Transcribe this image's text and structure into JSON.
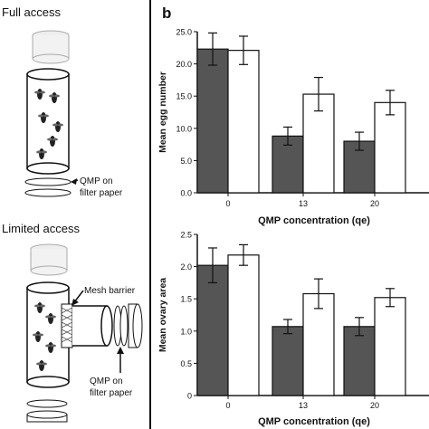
{
  "panel_a": {
    "full_access_title": "Full access",
    "limited_access_title": "Limited access",
    "qmp_label_line1": "QMP on",
    "qmp_label_line2": "filter paper",
    "mesh_label": "Mesh barrier"
  },
  "panel_b": {
    "label": "b"
  },
  "colors": {
    "dark_bar": "#555555",
    "light_bar": "#ffffff",
    "axis": "#111111"
  },
  "chart_data": [
    {
      "type": "bar",
      "categories": [
        "0",
        "13",
        "20"
      ],
      "series": [
        {
          "values": [
            22.3,
            8.8,
            8.0
          ],
          "errors": [
            2.5,
            1.4,
            1.4
          ],
          "color": "#555555"
        },
        {
          "values": [
            22.1,
            15.3,
            14.0
          ],
          "errors": [
            2.2,
            2.6,
            1.9
          ],
          "color": "#ffffff"
        }
      ],
      "xlabel": "QMP concentration (qe)",
      "ylabel": "Mean egg number",
      "ylim": [
        0,
        25
      ],
      "yticks": [
        "0.0",
        "5.0",
        "10.0",
        "15.0",
        "20.0",
        "25.0"
      ],
      "ytick_values": [
        0,
        5,
        10,
        15,
        20,
        25
      ]
    },
    {
      "type": "bar",
      "categories": [
        "0",
        "13",
        "20"
      ],
      "series": [
        {
          "values": [
            2.02,
            1.07,
            1.07
          ],
          "errors": [
            0.27,
            0.11,
            0.14
          ],
          "color": "#555555"
        },
        {
          "values": [
            2.18,
            1.58,
            1.52
          ],
          "errors": [
            0.16,
            0.23,
            0.14
          ],
          "color": "#ffffff"
        }
      ],
      "xlabel": "QMP concentration (qe)",
      "ylabel": "Mean ovary area",
      "ylim": [
        0,
        2.5
      ],
      "yticks": [
        "0",
        "0.5",
        "1.0",
        "1.5",
        "2.0",
        "2.5"
      ],
      "ytick_values": [
        0,
        0.5,
        1.0,
        1.5,
        2.0,
        2.5
      ]
    }
  ]
}
